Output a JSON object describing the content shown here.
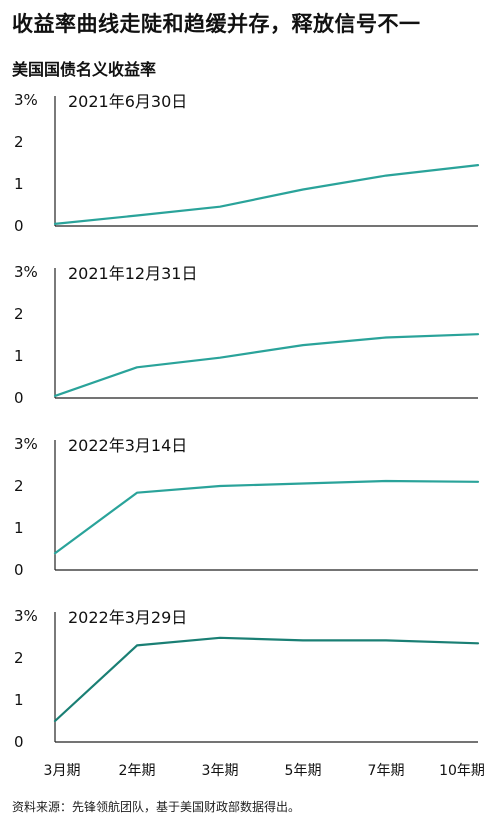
{
  "title": "收益率曲线走陡和趋缓并存，释放信号不一",
  "subtitle": "美国国债名义收益率",
  "source": "资料来源：先锋领航团队，基于美国财政部数据得出。",
  "colors": {
    "line_light": "#2aa39a",
    "line_dark": "#1a7f74",
    "axis": "#222222"
  },
  "chart_data": [
    {
      "type": "line",
      "panel_label": "2021年6月30日",
      "categories": [
        "3月期",
        "2年期",
        "3年期",
        "5年期",
        "7年期",
        "10年期"
      ],
      "values": [
        0.05,
        0.25,
        0.46,
        0.87,
        1.2,
        1.45
      ],
      "y_ticks": [
        "0",
        "1",
        "2",
        "3%"
      ],
      "ylim": [
        0,
        3
      ],
      "color": "#2aa39a"
    },
    {
      "type": "line",
      "panel_label": "2021年12月31日",
      "categories": [
        "3月期",
        "2年期",
        "3年期",
        "5年期",
        "7年期",
        "10年期"
      ],
      "values": [
        0.05,
        0.73,
        0.96,
        1.26,
        1.44,
        1.52
      ],
      "y_ticks": [
        "0",
        "1",
        "2",
        "3%"
      ],
      "ylim": [
        0,
        3
      ],
      "color": "#2aa39a"
    },
    {
      "type": "line",
      "panel_label": "2022年3月14日",
      "categories": [
        "3月期",
        "2年期",
        "3年期",
        "5年期",
        "7年期",
        "10年期"
      ],
      "values": [
        0.4,
        1.84,
        2.0,
        2.06,
        2.12,
        2.1
      ],
      "y_ticks": [
        "0",
        "1",
        "2",
        "3%"
      ],
      "ylim": [
        0,
        3
      ],
      "color": "#2aa39a"
    },
    {
      "type": "line",
      "panel_label": "2022年3月29日",
      "categories": [
        "3月期",
        "2年期",
        "3年期",
        "5年期",
        "7年期",
        "10年期"
      ],
      "values": [
        0.5,
        2.3,
        2.48,
        2.42,
        2.42,
        2.35
      ],
      "y_ticks": [
        "0",
        "1",
        "2",
        "3%"
      ],
      "ylim": [
        0,
        3
      ],
      "color": "#1a7f74"
    }
  ],
  "x_axis_labels": [
    "3月期",
    "2年期",
    "3年期",
    "5年期",
    "7年期",
    "10年期"
  ]
}
